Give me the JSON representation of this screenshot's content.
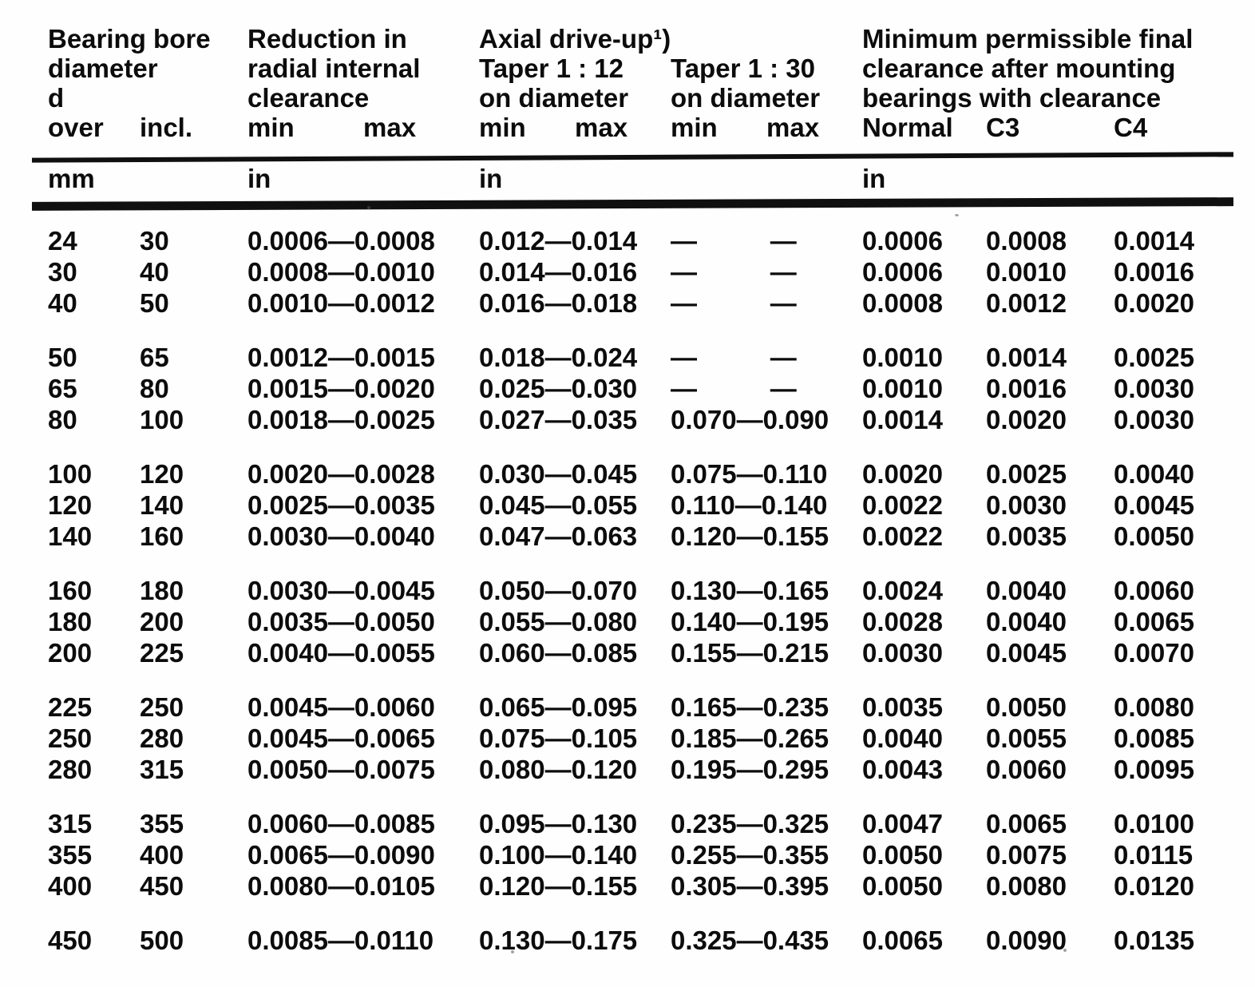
{
  "header": {
    "bore": {
      "line1": "Bearing bore",
      "line2": "diameter",
      "line3": "d",
      "sub_over": "over",
      "sub_incl": "incl."
    },
    "reduction": {
      "line1": "Reduction in",
      "line2": "radial internal",
      "line3": "clearance",
      "sub_min": "min",
      "sub_max": "max"
    },
    "axial": {
      "title": "Axial drive-up¹)",
      "taper12": {
        "line1": "Taper 1 : 12",
        "line2": "on diameter",
        "sub_min": "min",
        "sub_max": "max"
      },
      "taper30": {
        "line1": "Taper 1 : 30",
        "line2": "on diameter",
        "sub_min": "min",
        "sub_max": "max"
      }
    },
    "final_clearance": {
      "line1": "Minimum permissible final",
      "line2": "clearance after mounting",
      "line3": "bearings with clearance",
      "sub_normal": "Normal",
      "sub_c3": "C3",
      "sub_c4": "C4"
    },
    "units": {
      "bore": "mm",
      "reduction": "in",
      "axial": "in",
      "final": "in"
    }
  },
  "table": {
    "column_keys": [
      "bore_over_mm",
      "bore_incl_mm",
      "reduction_min_max_in",
      "taper_1_12_min_max_in",
      "taper_1_30_min_max_in",
      "final_clearance_normal_in",
      "final_clearance_c3_in",
      "final_clearance_c4_in"
    ],
    "row_groups": [
      [
        [
          "24",
          "30",
          "0.0006—0.0008",
          "0.012—0.014",
          "—     —",
          "0.0006",
          "0.0008",
          "0.0014"
        ],
        [
          "30",
          "40",
          "0.0008—0.0010",
          "0.014—0.016",
          "—     —",
          "0.0006",
          "0.0010",
          "0.0016"
        ],
        [
          "40",
          "50",
          "0.0010—0.0012",
          "0.016—0.018",
          "—     —",
          "0.0008",
          "0.0012",
          "0.0020"
        ]
      ],
      [
        [
          "50",
          "65",
          "0.0012—0.0015",
          "0.018—0.024",
          "—     —",
          "0.0010",
          "0.0014",
          "0.0025"
        ],
        [
          "65",
          "80",
          "0.0015—0.0020",
          "0.025—0.030",
          "—     —",
          "0.0010",
          "0.0016",
          "0.0030"
        ],
        [
          "80",
          "100",
          "0.0018—0.0025",
          "0.027—0.035",
          "0.070—0.090",
          "0.0014",
          "0.0020",
          "0.0030"
        ]
      ],
      [
        [
          "100",
          "120",
          "0.0020—0.0028",
          "0.030—0.045",
          "0.075—0.110",
          "0.0020",
          "0.0025",
          "0.0040"
        ],
        [
          "120",
          "140",
          "0.0025—0.0035",
          "0.045—0.055",
          "0.110—0.140",
          "0.0022",
          "0.0030",
          "0.0045"
        ],
        [
          "140",
          "160",
          "0.0030—0.0040",
          "0.047—0.063",
          "0.120—0.155",
          "0.0022",
          "0.0035",
          "0.0050"
        ]
      ],
      [
        [
          "160",
          "180",
          "0.0030—0.0045",
          "0.050—0.070",
          "0.130—0.165",
          "0.0024",
          "0.0040",
          "0.0060"
        ],
        [
          "180",
          "200",
          "0.0035—0.0050",
          "0.055—0.080",
          "0.140—0.195",
          "0.0028",
          "0.0040",
          "0.0065"
        ],
        [
          "200",
          "225",
          "0.0040—0.0055",
          "0.060—0.085",
          "0.155—0.215",
          "0.0030",
          "0.0045",
          "0.0070"
        ]
      ],
      [
        [
          "225",
          "250",
          "0.0045—0.0060",
          "0.065—0.095",
          "0.165—0.235",
          "0.0035",
          "0.0050",
          "0.0080"
        ],
        [
          "250",
          "280",
          "0.0045—0.0065",
          "0.075—0.105",
          "0.185—0.265",
          "0.0040",
          "0.0055",
          "0.0085"
        ],
        [
          "280",
          "315",
          "0.0050—0.0075",
          "0.080—0.120",
          "0.195—0.295",
          "0.0043",
          "0.0060",
          "0.0095"
        ]
      ],
      [
        [
          "315",
          "355",
          "0.0060—0.0085",
          "0.095—0.130",
          "0.235—0.325",
          "0.0047",
          "0.0065",
          "0.0100"
        ],
        [
          "355",
          "400",
          "0.0065—0.0090",
          "0.100—0.140",
          "0.255—0.355",
          "0.0050",
          "0.0075",
          "0.0115"
        ],
        [
          "400",
          "450",
          "0.0080—0.0105",
          "0.120—0.155",
          "0.305—0.395",
          "0.0050",
          "0.0080",
          "0.0120"
        ]
      ],
      [
        [
          "450",
          "500",
          "0.0085—0.0110",
          "0.130—0.175",
          "0.325—0.435",
          "0.0065",
          "0.0090",
          "0.0135"
        ]
      ]
    ]
  }
}
